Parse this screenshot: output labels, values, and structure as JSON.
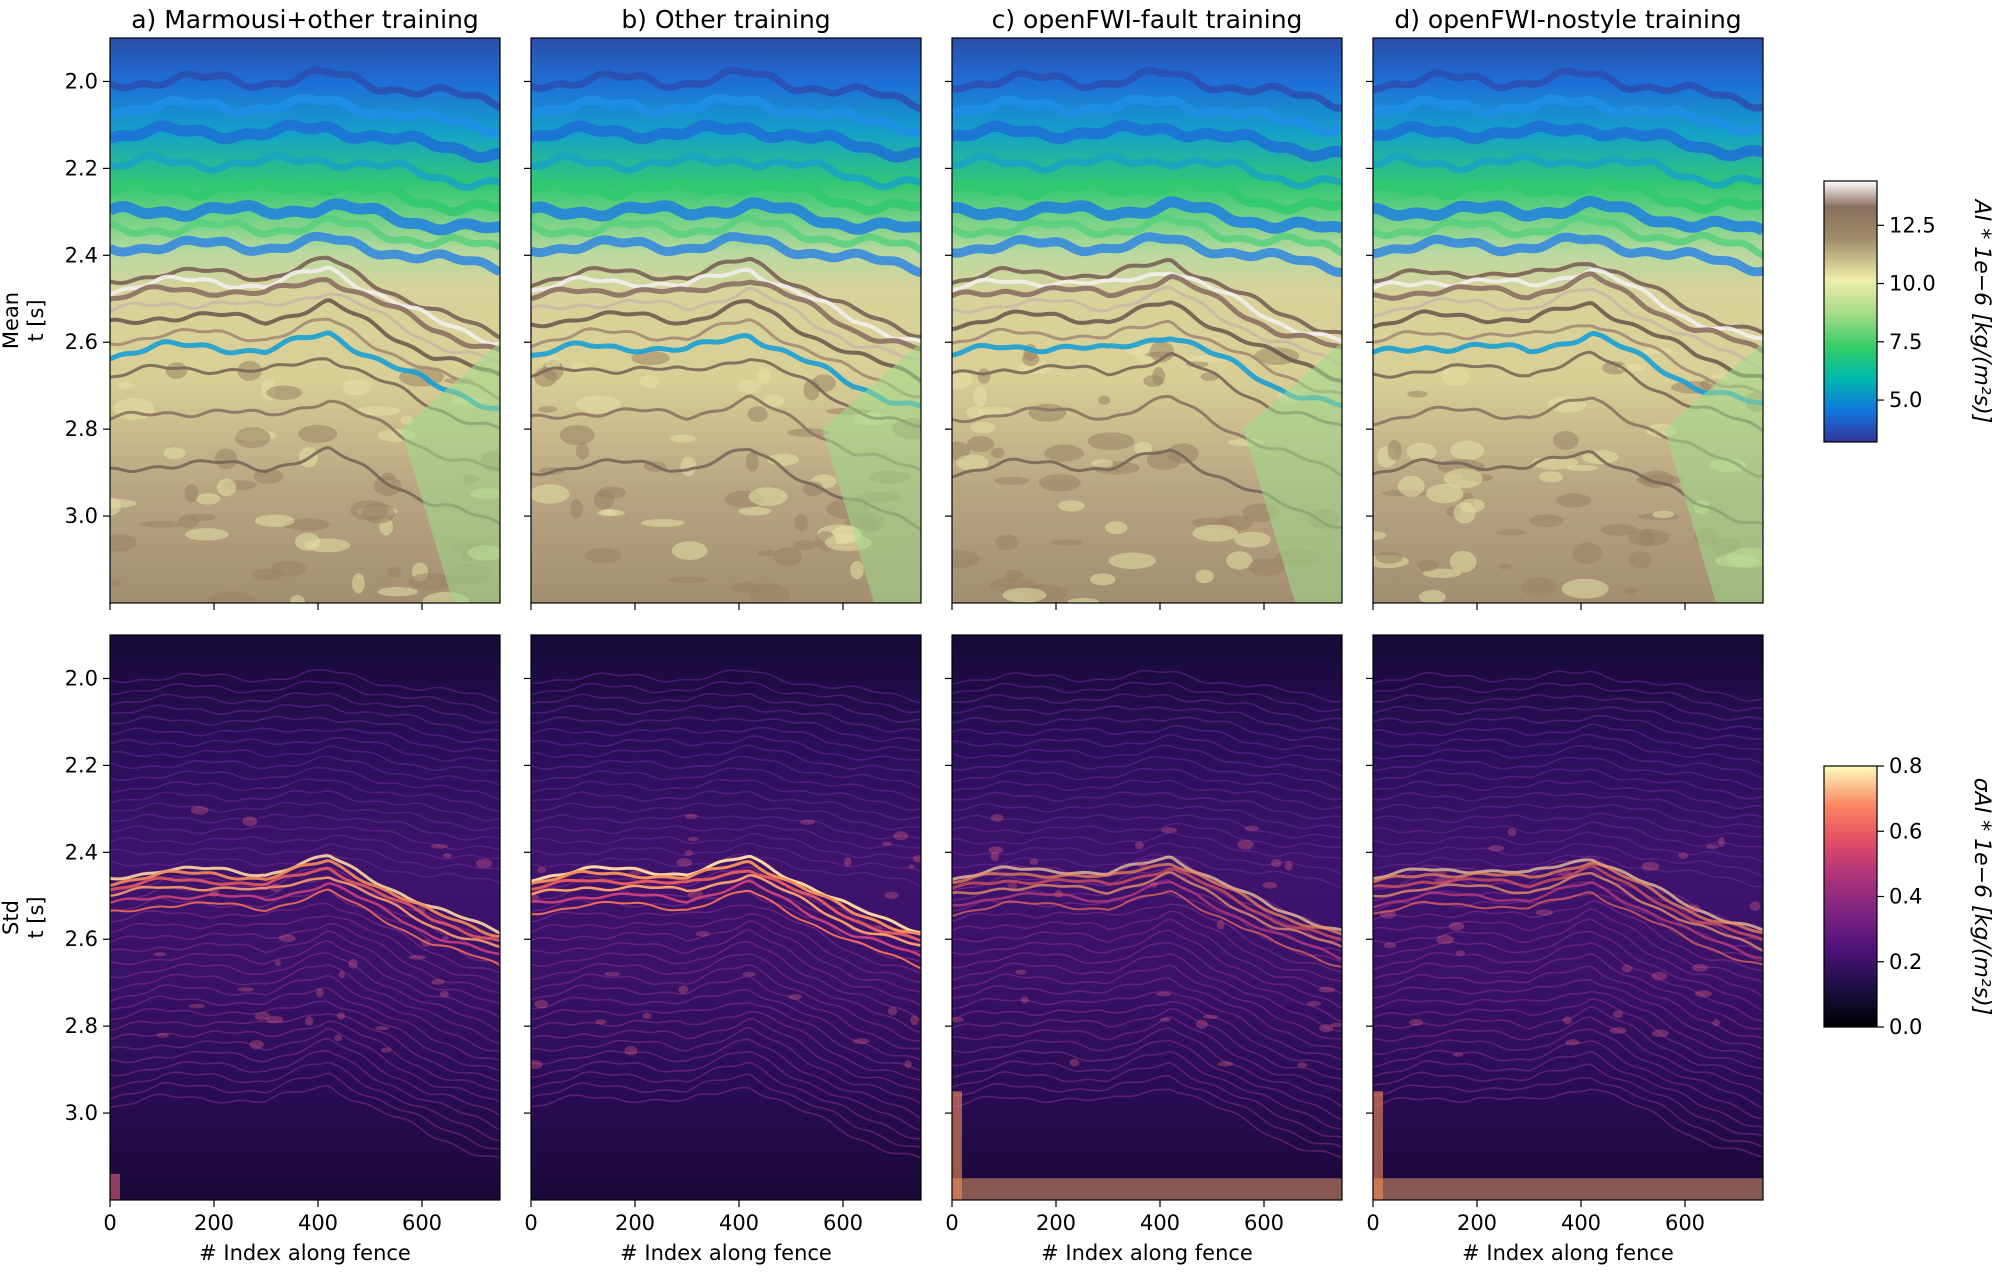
{
  "figure": {
    "row_labels": [
      {
        "name": "Mean",
        "unit_label": "t [s]"
      },
      {
        "name": "Std",
        "unit_label": "t [s]"
      }
    ]
  },
  "colorbars": [
    {
      "label": "AI * 1e−6 [kg/(m²s)]",
      "colormap": "terrain",
      "range": [
        3.2,
        14.4
      ],
      "ticks": [
        5.0,
        7.5,
        10.0,
        12.5
      ],
      "tick_labels": [
        "5.0",
        "7.5",
        "10.0",
        "12.5"
      ]
    },
    {
      "label": "σAI * 1e−6 [kg/(m²s)]",
      "colormap": "magma",
      "range": [
        0.0,
        0.8
      ],
      "ticks": [
        0.0,
        0.2,
        0.4,
        0.6,
        0.8
      ],
      "tick_labels": [
        "0.0",
        "0.2",
        "0.4",
        "0.6",
        "0.8"
      ]
    }
  ],
  "chart_data": {
    "type": "heatmap",
    "panels": [
      {
        "title": "a) Marmousi+other training",
        "row": "Mean"
      },
      {
        "title": "b) Other training",
        "row": "Mean"
      },
      {
        "title": "c) openFWI-fault training",
        "row": "Mean"
      },
      {
        "title": "d) openFWI-nostyle training",
        "row": "Mean"
      },
      {
        "title": "",
        "row": "Std"
      },
      {
        "title": "",
        "row": "Std"
      },
      {
        "title": "",
        "row": "Std"
      },
      {
        "title": "",
        "row": "Std"
      }
    ],
    "xlabel": "# Index along fence",
    "xlim": [
      0,
      750
    ],
    "xticks": [
      0,
      200,
      400,
      600
    ],
    "xtick_labels": [
      "0",
      "200",
      "400",
      "600"
    ],
    "ylim": [
      1.9,
      3.2
    ],
    "y_inverted": true,
    "yticks": [
      2.0,
      2.2,
      2.4,
      2.6,
      2.8,
      3.0
    ],
    "ytick_labels": [
      "2.0",
      "2.2",
      "2.4",
      "2.6",
      "2.8",
      "3.0"
    ],
    "horizons_t": {
      "interface_x": [
        0,
        100,
        200,
        300,
        420,
        520,
        620,
        750
      ],
      "interface_t": [
        2.46,
        2.44,
        2.44,
        2.45,
        2.41,
        2.47,
        2.53,
        2.58
      ]
    }
  }
}
